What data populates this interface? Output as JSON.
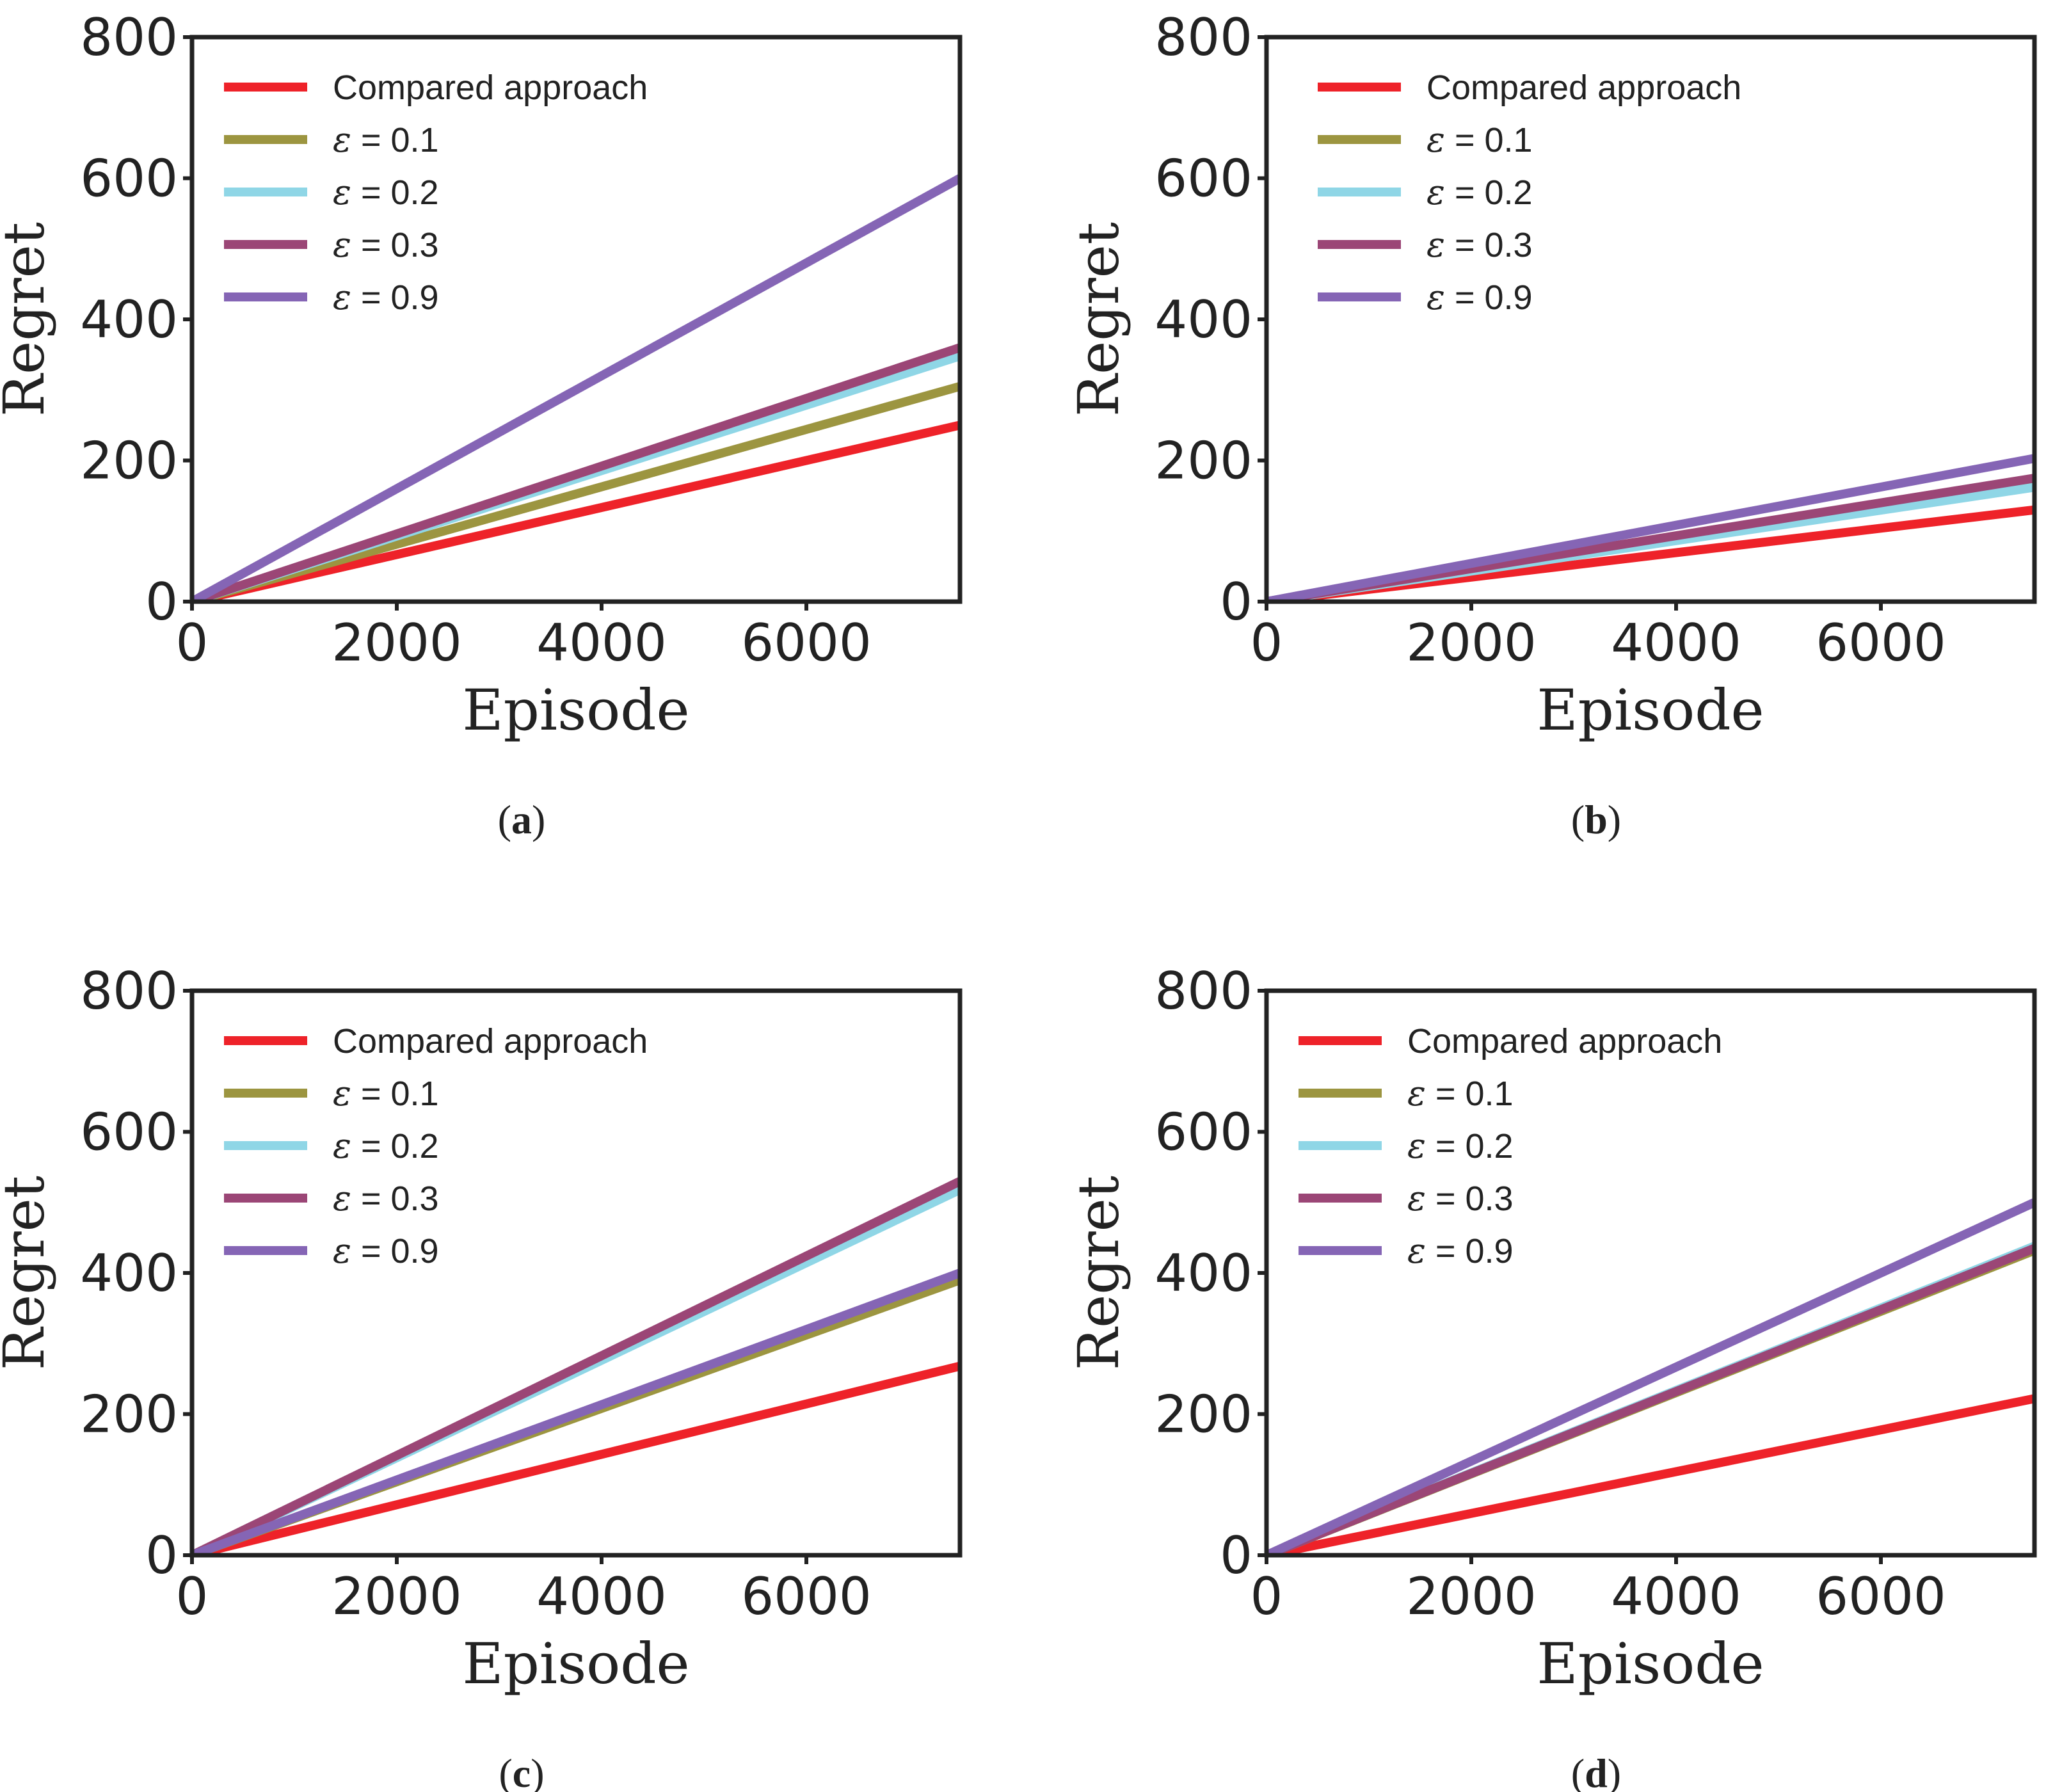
{
  "figure": {
    "panels": [
      "a",
      "b",
      "c",
      "d"
    ]
  },
  "chart_data": [
    {
      "panel": "a",
      "type": "line",
      "caption": "(a)",
      "xlabel": "Episode",
      "ylabel": "Regret",
      "xlim": [
        0,
        7500
      ],
      "ylim": [
        0,
        800
      ],
      "xticks": [
        "0",
        "2000",
        "4000",
        "6000"
      ],
      "yticks": [
        "0",
        "200",
        "400",
        "600",
        "800"
      ],
      "legend_position": "top-left",
      "series": [
        {
          "name": "Compared approach",
          "color": "#ee2229",
          "x": [
            0,
            7500
          ],
          "y": [
            0,
            250
          ]
        },
        {
          "name": "ε = 0.1",
          "color": "#9c9540",
          "x": [
            0,
            7500
          ],
          "y": [
            0,
            305
          ]
        },
        {
          "name": "ε = 0.2",
          "color": "#8fd6e6",
          "x": [
            0,
            7500
          ],
          "y": [
            0,
            348
          ]
        },
        {
          "name": "ε = 0.3",
          "color": "#9b4676",
          "x": [
            0,
            7500
          ],
          "y": [
            0,
            360
          ]
        },
        {
          "name": "ε = 0.9",
          "color": "#8565b5",
          "x": [
            0,
            7500
          ],
          "y": [
            0,
            600
          ]
        }
      ]
    },
    {
      "panel": "b",
      "type": "line",
      "caption": "(b)",
      "xlabel": "Episode",
      "ylabel": "Regret",
      "xlim": [
        0,
        7500
      ],
      "ylim": [
        0,
        800
      ],
      "xticks": [
        "0",
        "2000",
        "4000",
        "6000"
      ],
      "yticks": [
        "0",
        "200",
        "400",
        "600",
        "800"
      ],
      "legend_position": "top-right",
      "series": [
        {
          "name": "Compared approach",
          "color": "#ee2229",
          "x": [
            0,
            7500
          ],
          "y": [
            0,
            130
          ]
        },
        {
          "name": "ε = 0.1",
          "color": "#9c9540",
          "x": [
            0,
            7500
          ],
          "y": [
            0,
            170
          ]
        },
        {
          "name": "ε = 0.2",
          "color": "#8fd6e6",
          "x": [
            0,
            7500
          ],
          "y": [
            0,
            162
          ]
        },
        {
          "name": "ε = 0.3",
          "color": "#9b4676",
          "x": [
            0,
            7500
          ],
          "y": [
            0,
            175
          ]
        },
        {
          "name": "ε = 0.9",
          "color": "#8565b5",
          "x": [
            0,
            7500
          ],
          "y": [
            0,
            203
          ]
        }
      ]
    },
    {
      "panel": "c",
      "type": "line",
      "caption": "(c)",
      "xlabel": "Episode",
      "ylabel": "Regret",
      "xlim": [
        0,
        7500
      ],
      "ylim": [
        0,
        800
      ],
      "xticks": [
        "0",
        "2000",
        "4000",
        "6000"
      ],
      "yticks": [
        "0",
        "200",
        "400",
        "600",
        "800"
      ],
      "legend_position": "top-left",
      "series": [
        {
          "name": "Compared approach",
          "color": "#ee2229",
          "x": [
            0,
            7500
          ],
          "y": [
            0,
            268
          ]
        },
        {
          "name": "ε = 0.1",
          "color": "#9c9540",
          "x": [
            0,
            7500
          ],
          "y": [
            0,
            390
          ]
        },
        {
          "name": "ε = 0.2",
          "color": "#8fd6e6",
          "x": [
            0,
            7500
          ],
          "y": [
            0,
            518
          ]
        },
        {
          "name": "ε = 0.3",
          "color": "#9b4676",
          "x": [
            0,
            7500
          ],
          "y": [
            0,
            530
          ]
        },
        {
          "name": "ε = 0.9",
          "color": "#8565b5",
          "x": [
            0,
            7500
          ],
          "y": [
            0,
            400
          ]
        }
      ]
    },
    {
      "panel": "d",
      "type": "line",
      "caption": "(d)",
      "xlabel": "Episode",
      "ylabel": "Regret",
      "xlim": [
        0,
        7500
      ],
      "ylim": [
        0,
        800
      ],
      "xticks": [
        "0",
        "2000",
        "4000",
        "6000"
      ],
      "yticks": [
        "0",
        "200",
        "400",
        "600",
        "800"
      ],
      "legend_position": "top-left",
      "series": [
        {
          "name": "Compared approach",
          "color": "#ee2229",
          "x": [
            0,
            7500
          ],
          "y": [
            0,
            222
          ]
        },
        {
          "name": "ε = 0.1",
          "color": "#9c9540",
          "x": [
            0,
            7500
          ],
          "y": [
            0,
            432
          ]
        },
        {
          "name": "ε = 0.2",
          "color": "#8fd6e6",
          "x": [
            0,
            7500
          ],
          "y": [
            0,
            438
          ]
        },
        {
          "name": "ε = 0.3",
          "color": "#9b4676",
          "x": [
            0,
            7500
          ],
          "y": [
            0,
            435
          ]
        },
        {
          "name": "ε = 0.9",
          "color": "#8565b5",
          "x": [
            0,
            7500
          ],
          "y": [
            0,
            500
          ]
        }
      ]
    }
  ]
}
